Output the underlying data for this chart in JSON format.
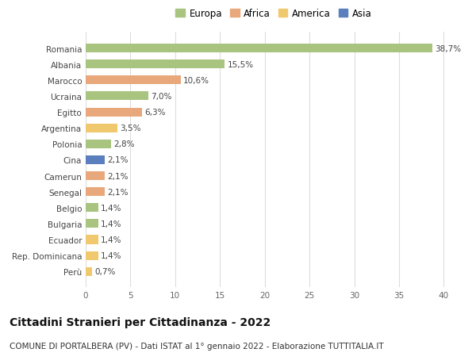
{
  "categories": [
    "Romania",
    "Albania",
    "Marocco",
    "Ucraina",
    "Egitto",
    "Argentina",
    "Polonia",
    "Cina",
    "Camerun",
    "Senegal",
    "Belgio",
    "Bulgaria",
    "Ecuador",
    "Rep. Dominicana",
    "Perù"
  ],
  "values": [
    38.7,
    15.5,
    10.6,
    7.0,
    6.3,
    3.5,
    2.8,
    2.1,
    2.1,
    2.1,
    1.4,
    1.4,
    1.4,
    1.4,
    0.7
  ],
  "labels": [
    "38,7%",
    "15,5%",
    "10,6%",
    "7,0%",
    "6,3%",
    "3,5%",
    "2,8%",
    "2,1%",
    "2,1%",
    "2,1%",
    "1,4%",
    "1,4%",
    "1,4%",
    "1,4%",
    "0,7%"
  ],
  "continents": [
    "Europa",
    "Europa",
    "Africa",
    "Europa",
    "Africa",
    "America",
    "Europa",
    "Asia",
    "Africa",
    "Africa",
    "Europa",
    "Europa",
    "America",
    "America",
    "America"
  ],
  "colors": {
    "Europa": "#a8c47f",
    "Africa": "#e8a87c",
    "America": "#f0c96e",
    "Asia": "#5b7fbe"
  },
  "legend_order": [
    "Europa",
    "Africa",
    "America",
    "Asia"
  ],
  "xlim": [
    0,
    42
  ],
  "xticks": [
    0,
    5,
    10,
    15,
    20,
    25,
    30,
    35,
    40
  ],
  "title": "Cittadini Stranieri per Cittadinanza - 2022",
  "subtitle": "COMUNE DI PORTALBERA (PV) - Dati ISTAT al 1° gennaio 2022 - Elaborazione TUTTITALIA.IT",
  "bg_color": "#ffffff",
  "grid_color": "#dddddd",
  "bar_height": 0.55,
  "title_fontsize": 10,
  "subtitle_fontsize": 7.5,
  "label_fontsize": 7.5,
  "tick_fontsize": 7.5,
  "legend_fontsize": 8.5
}
